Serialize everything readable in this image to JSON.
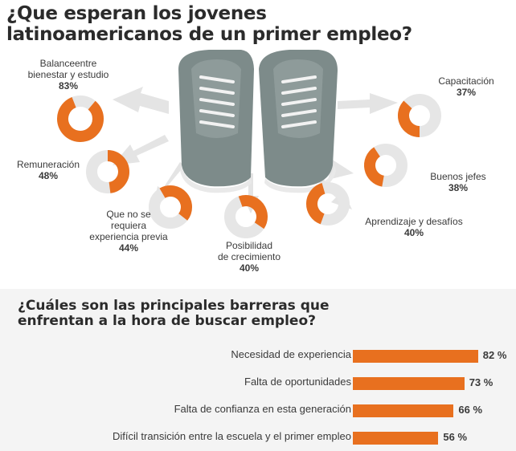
{
  "title": {
    "line1": "¿Que esperan los jovenes",
    "line2": "latinoamericanos de un primer empleo?"
  },
  "colors": {
    "accent": "#e8701f",
    "donut_track": "#e6e6e6",
    "shoe": "#7d8b8a"
  },
  "chart_data": [
    {
      "type": "pie",
      "title": "¿Que esperan los jovenes latinoamericanos de un primer empleo?",
      "series": [
        {
          "label": [
            "Balanceentre",
            "bienestar y estudio"
          ],
          "pct_label": "83%",
          "value": 83
        },
        {
          "label": [
            "Remuneración"
          ],
          "pct_label": "48%",
          "value": 48
        },
        {
          "label": [
            "Que no se",
            "requiera",
            "experiencia previa"
          ],
          "pct_label": "44%",
          "value": 44
        },
        {
          "label": [
            "Posibilidad",
            "de crecimiento"
          ],
          "pct_label": "40%",
          "value": 40
        },
        {
          "label": [
            "Aprendizaje y desafíos"
          ],
          "pct_label": "40%",
          "value": 40
        },
        {
          "label": [
            "Buenos jefes"
          ],
          "pct_label": "38%",
          "value": 38
        },
        {
          "label": [
            "Capacitación"
          ],
          "pct_label": "37%",
          "value": 37
        }
      ]
    },
    {
      "type": "bar",
      "title": "¿Cuáles son las principales barreras que enfrentan a la hora de buscar empleo?",
      "subtitle_line1": "¿Cuáles son las principales barreras que",
      "subtitle_line2": "enfrentan a la hora de buscar empleo?",
      "categories": [
        "Necesidad de experiencia",
        "Falta de oportunidades",
        "Falta de confianza en esta generación",
        "Difícil transición entre la escuela y el primer empleo"
      ],
      "values": [
        82,
        73,
        66,
        56
      ],
      "value_labels": [
        "82 %",
        "73 %",
        "66 %",
        "56 %"
      ],
      "xlim": [
        0,
        100
      ]
    }
  ]
}
